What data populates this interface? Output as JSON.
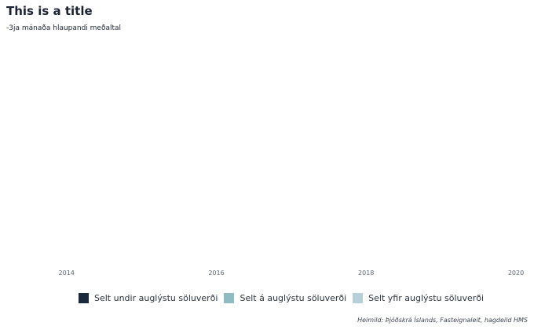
{
  "chart_data": {
    "type": "area",
    "title": "This is a title",
    "subtitle": "-3ja mánaða hlaupandi meðaltal",
    "caption": "Heimild: Þjóðskrá Íslands, Fasteignaleit, hagdeild HMS",
    "xlabel": "",
    "ylabel": "",
    "x_ticks": [
      "2014",
      "2016",
      "2018",
      "2020"
    ],
    "x_range": [
      2013.5,
      2020.0
    ],
    "grid": false,
    "legend_position": "bottom",
    "series": [
      {
        "name": "Selt undir auglýstu söluverði",
        "color": "#1a2a3d",
        "values": []
      },
      {
        "name": "Selt á auglýstu söluverði",
        "color": "#8fbcc4",
        "values": []
      },
      {
        "name": "Selt yfir auglýstu söluverði",
        "color": "#b5d0d8",
        "values": []
      }
    ]
  }
}
